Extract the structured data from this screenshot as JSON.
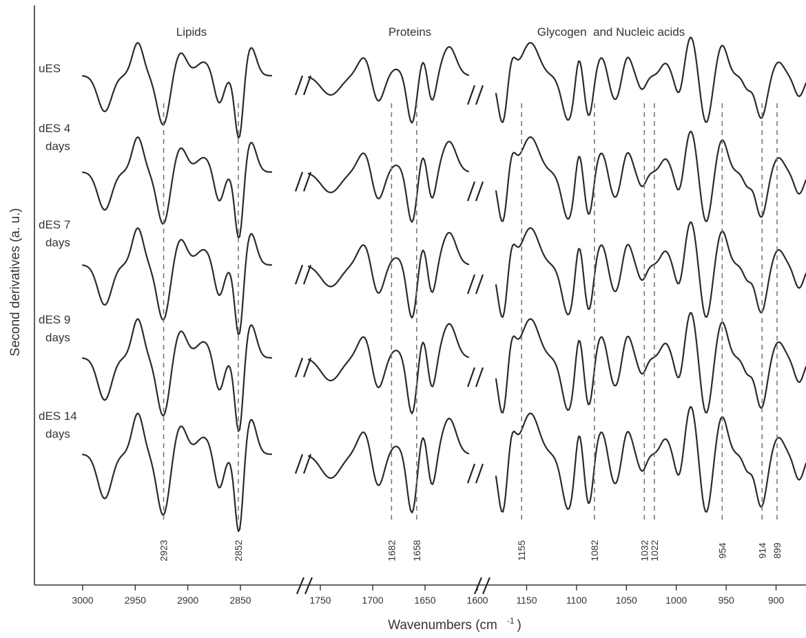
{
  "chart_data": {
    "type": "line",
    "title": "",
    "xlabel": "Wavenumbers (cm",
    "xlabel_sup": "-1",
    "xlabel_close": ")",
    "ylabel": "Second derivatives (a. u.)",
    "x_reversed": true,
    "x_break_segments": [
      [
        2850,
        3000
      ],
      [
        1600,
        1750
      ],
      [
        870,
        1180
      ]
    ],
    "x_ticks": {
      "lipids": [
        3000,
        2950,
        2900,
        2850
      ],
      "proteins": [
        1750,
        1700,
        1650,
        1600
      ],
      "fingerprint": [
        1150,
        1100,
        1050,
        1000,
        950,
        900
      ]
    },
    "regions": [
      {
        "label": "Lipids"
      },
      {
        "label": "Proteins"
      },
      {
        "label": "Glycogen  and Nucleic acids"
      }
    ],
    "series": [
      {
        "name": [
          "uES"
        ]
      },
      {
        "name": [
          "dES 4",
          "days"
        ]
      },
      {
        "name": [
          "dES 7",
          "days"
        ]
      },
      {
        "name": [
          "dES 9",
          "days"
        ]
      },
      {
        "name": [
          "dES 14",
          "days"
        ]
      }
    ],
    "peaks": [
      {
        "label": "2923",
        "x": 2923
      },
      {
        "label": "2852",
        "x": 2852
      },
      {
        "label": "1682",
        "x": 1682
      },
      {
        "label": "1658",
        "x": 1658
      },
      {
        "label": "1155",
        "x": 1155
      },
      {
        "label": "1082",
        "x": 1082
      },
      {
        "label": "1032",
        "x": 1032
      },
      {
        "label": "1022",
        "x": 1022
      },
      {
        "label": "954",
        "x": 954
      },
      {
        "label": "914",
        "x": 914
      },
      {
        "label": "899",
        "x": 899
      }
    ],
    "grid": false,
    "legend": "none"
  }
}
